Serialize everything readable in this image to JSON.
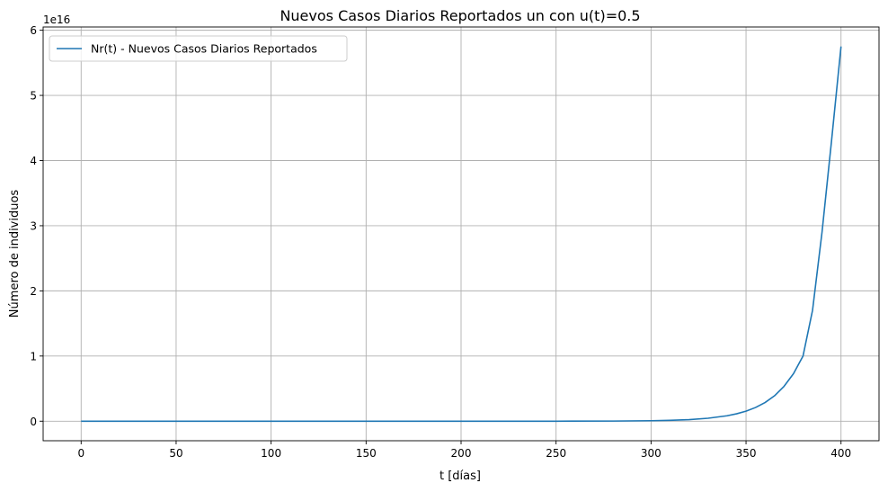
{
  "chart_data": {
    "type": "line",
    "title": "Nuevos Casos Diarios Reportados un con u(t)=0.5",
    "xlabel": "t [días]",
    "ylabel": "Número de individuos",
    "y_offset_text": "1e16",
    "y_scale_factor": 1e+16,
    "xlim": [
      -20,
      420
    ],
    "ylim": [
      -0.3,
      6.05
    ],
    "xticks": [
      0,
      50,
      100,
      150,
      200,
      250,
      300,
      350,
      400
    ],
    "xtick_labels": [
      "0",
      "50",
      "100",
      "150",
      "200",
      "250",
      "300",
      "350",
      "400"
    ],
    "yticks": [
      0,
      1,
      2,
      3,
      4,
      5,
      6
    ],
    "ytick_labels": [
      "0",
      "1",
      "2",
      "3",
      "4",
      "5",
      "6"
    ],
    "grid": true,
    "legend_position": "top-left",
    "series": [
      {
        "name": "Nr(t) - Nuevos Casos Diarios Reportados",
        "color": "#1f77b4",
        "x": [
          0,
          50,
          100,
          150,
          200,
          250,
          280,
          300,
          310,
          320,
          330,
          340,
          345,
          350,
          355,
          360,
          365,
          370,
          375,
          380,
          385,
          390,
          395,
          400
        ],
        "y": [
          0,
          0,
          0,
          0,
          0,
          0,
          0.002,
          0.007,
          0.013,
          0.024,
          0.045,
          0.083,
          0.113,
          0.154,
          0.21,
          0.286,
          0.39,
          0.535,
          0.73,
          1.0,
          1.7,
          2.9,
          4.3,
          5.75
        ]
      }
    ]
  }
}
